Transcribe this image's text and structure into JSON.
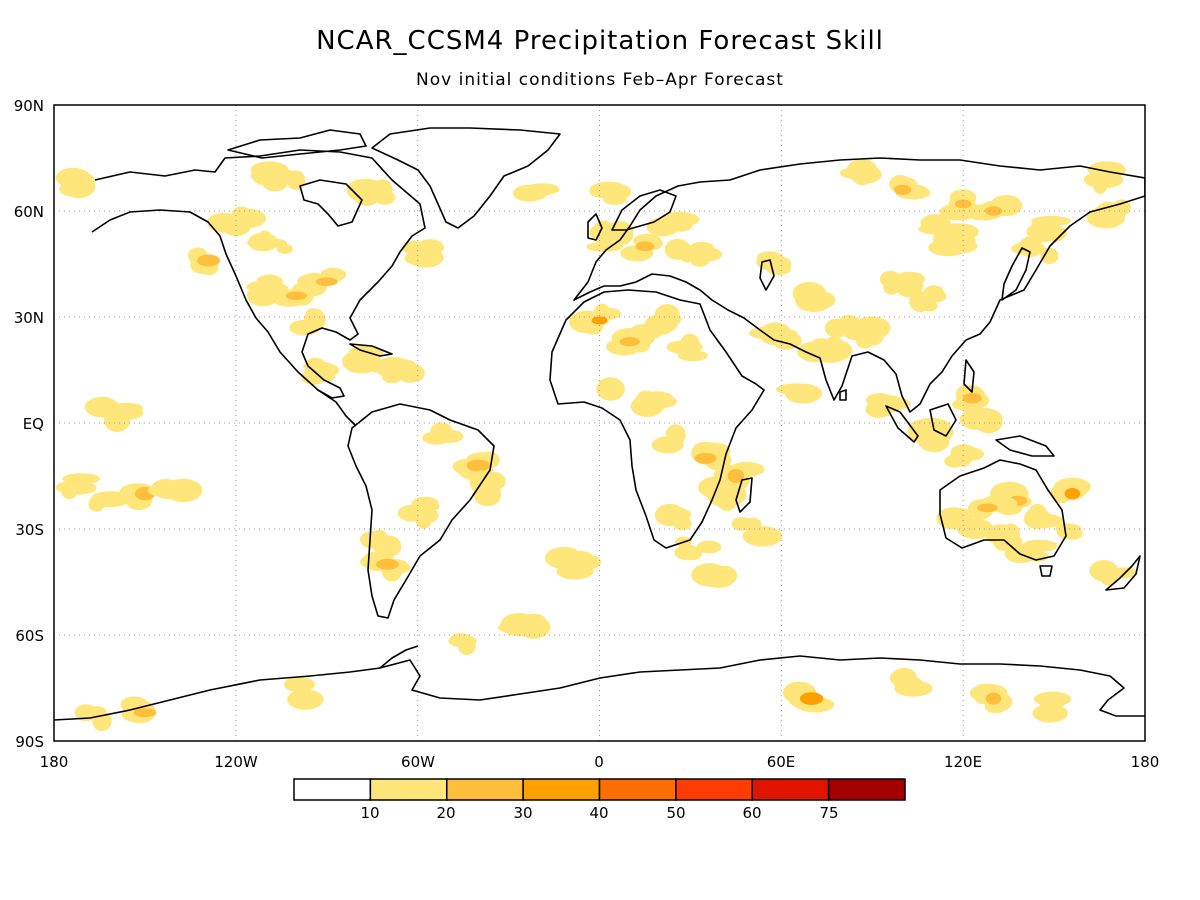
{
  "title": "NCAR_CCSM4 Precipitation Forecast Skill",
  "subtitle": "Nov initial conditions  Feb–Apr Forecast",
  "axes": {
    "lat_labels": [
      "90N",
      "60N",
      "30N",
      "EQ",
      "30S",
      "60S",
      "90S"
    ],
    "lon_labels": [
      "180",
      "120W",
      "60W",
      "0",
      "60E",
      "120E",
      "180"
    ],
    "grid": "dotted"
  },
  "colorbar": {
    "colors": [
      "#ffffff",
      "#ffe67a",
      "#ffbe3c",
      "#ffa000",
      "#ff6e00",
      "#ff3c00",
      "#e11400",
      "#a50000"
    ],
    "labels": [
      "10",
      "20",
      "30",
      "40",
      "50",
      "60",
      "75"
    ]
  },
  "chart_data": {
    "type": "heatmap",
    "title": "NCAR_CCSM4 Precipitation Forecast Skill",
    "subtitle": "Nov initial conditions  Feb–Apr Forecast",
    "xlim": [
      -180,
      180
    ],
    "ylim": [
      -90,
      90
    ],
    "x_ticks": [
      -180,
      -120,
      -60,
      0,
      60,
      120,
      180
    ],
    "y_ticks": [
      90,
      60,
      30,
      0,
      -30,
      -60,
      -90
    ],
    "levels": [
      10,
      20,
      30,
      40,
      50,
      60,
      75
    ],
    "regions": [
      {
        "lon": 156,
        "lat": -20,
        "value": 35
      },
      {
        "lon": 138,
        "lat": -22,
        "value": 22
      },
      {
        "lon": 128,
        "lat": -24,
        "value": 25
      },
      {
        "lon": 145,
        "lat": -27,
        "value": 18
      },
      {
        "lon": 120,
        "lat": -28,
        "value": 15
      },
      {
        "lon": 135,
        "lat": -32,
        "value": 15
      },
      {
        "lon": 142,
        "lat": -36,
        "value": 15
      },
      {
        "lon": 170,
        "lat": -44,
        "value": 15
      },
      {
        "lon": 158,
        "lat": -30,
        "value": 15
      },
      {
        "lon": 123,
        "lat": 7,
        "value": 22
      },
      {
        "lon": 125,
        "lat": 1,
        "value": 15
      },
      {
        "lon": 110,
        "lat": -3,
        "value": 15
      },
      {
        "lon": 120,
        "lat": -10,
        "value": 15
      },
      {
        "lon": 96,
        "lat": 5,
        "value": 15
      },
      {
        "lon": 70,
        "lat": -78,
        "value": 30
      },
      {
        "lon": 130,
        "lat": -78,
        "value": 25
      },
      {
        "lon": 100,
        "lat": -74,
        "value": 15
      },
      {
        "lon": 150,
        "lat": -80,
        "value": 15
      },
      {
        "lon": -150,
        "lat": -82,
        "value": 20
      },
      {
        "lon": -100,
        "lat": -76,
        "value": 15
      },
      {
        "lon": -168,
        "lat": -84,
        "value": 15
      },
      {
        "lon": -129,
        "lat": 46,
        "value": 22
      },
      {
        "lon": -100,
        "lat": 36,
        "value": 25
      },
      {
        "lon": -90,
        "lat": 40,
        "value": 25
      },
      {
        "lon": -110,
        "lat": 38,
        "value": 15
      },
      {
        "lon": -95,
        "lat": 28,
        "value": 15
      },
      {
        "lon": -107,
        "lat": 50,
        "value": 15
      },
      {
        "lon": -120,
        "lat": 57,
        "value": 15
      },
      {
        "lon": -75,
        "lat": 65,
        "value": 15
      },
      {
        "lon": -60,
        "lat": 48,
        "value": 15
      },
      {
        "lon": -100,
        "lat": 68,
        "value": 15
      },
      {
        "lon": -110,
        "lat": 70,
        "value": 15
      },
      {
        "lon": -175,
        "lat": 68,
        "value": 15
      },
      {
        "lon": -75,
        "lat": 18,
        "value": 15
      },
      {
        "lon": -65,
        "lat": 14,
        "value": 15
      },
      {
        "lon": -92,
        "lat": 15,
        "value": 15
      },
      {
        "lon": -40,
        "lat": -12,
        "value": 20
      },
      {
        "lon": -70,
        "lat": -40,
        "value": 25
      },
      {
        "lon": -72,
        "lat": -33,
        "value": 15
      },
      {
        "lon": -60,
        "lat": -25,
        "value": 15
      },
      {
        "lon": -50,
        "lat": -3,
        "value": 15
      },
      {
        "lon": -35,
        "lat": -18,
        "value": 15
      },
      {
        "lon": -25,
        "lat": -57,
        "value": 15
      },
      {
        "lon": -45,
        "lat": -61,
        "value": 15
      },
      {
        "lon": -8,
        "lat": -40,
        "value": 15
      },
      {
        "lon": -150,
        "lat": -20,
        "value": 20
      },
      {
        "lon": -175,
        "lat": -17,
        "value": 15
      },
      {
        "lon": -163,
        "lat": -23,
        "value": 15
      },
      {
        "lon": -160,
        "lat": 3,
        "value": 15
      },
      {
        "lon": -140,
        "lat": -18,
        "value": 15
      },
      {
        "lon": 0,
        "lat": 29,
        "value": 35
      },
      {
        "lon": 10,
        "lat": 23,
        "value": 25
      },
      {
        "lon": 20,
        "lat": 29,
        "value": 15
      },
      {
        "lon": 30,
        "lat": 20,
        "value": 15
      },
      {
        "lon": 5,
        "lat": 8,
        "value": 15
      },
      {
        "lon": 15,
        "lat": 6,
        "value": 15
      },
      {
        "lon": 25,
        "lat": -5,
        "value": 15
      },
      {
        "lon": 35,
        "lat": -10,
        "value": 25
      },
      {
        "lon": 45,
        "lat": -15,
        "value": 25
      },
      {
        "lon": 40,
        "lat": -20,
        "value": 15
      },
      {
        "lon": 25,
        "lat": -28,
        "value": 15
      },
      {
        "lon": 32,
        "lat": -35,
        "value": 15
      },
      {
        "lon": 40,
        "lat": -45,
        "value": 15
      },
      {
        "lon": 50,
        "lat": -30,
        "value": 15
      },
      {
        "lon": 5,
        "lat": 52,
        "value": 15
      },
      {
        "lon": 15,
        "lat": 50,
        "value": 20
      },
      {
        "lon": 25,
        "lat": 57,
        "value": 15
      },
      {
        "lon": 30,
        "lat": 47,
        "value": 15
      },
      {
        "lon": 5,
        "lat": 65,
        "value": 15
      },
      {
        "lon": -20,
        "lat": 65,
        "value": 15
      },
      {
        "lon": 55,
        "lat": 45,
        "value": 15
      },
      {
        "lon": 100,
        "lat": 66,
        "value": 25
      },
      {
        "lon": 120,
        "lat": 62,
        "value": 20
      },
      {
        "lon": 130,
        "lat": 60,
        "value": 25
      },
      {
        "lon": 115,
        "lat": 55,
        "value": 15
      },
      {
        "lon": 150,
        "lat": 55,
        "value": 15
      },
      {
        "lon": 110,
        "lat": 35,
        "value": 15
      },
      {
        "lon": 115,
        "lat": 50,
        "value": 15
      },
      {
        "lon": 70,
        "lat": 35,
        "value": 15
      },
      {
        "lon": 75,
        "lat": 20,
        "value": 15
      },
      {
        "lon": 80,
        "lat": 28,
        "value": 15
      },
      {
        "lon": 90,
        "lat": 25,
        "value": 15
      },
      {
        "lon": 100,
        "lat": 40,
        "value": 15
      },
      {
        "lon": 60,
        "lat": 25,
        "value": 15
      },
      {
        "lon": 65,
        "lat": 10,
        "value": 15
      },
      {
        "lon": 170,
        "lat": 60,
        "value": 15
      },
      {
        "lon": 165,
        "lat": 70,
        "value": 15
      },
      {
        "lon": 85,
        "lat": 70,
        "value": 15
      },
      {
        "lon": 145,
        "lat": 48,
        "value": 15
      }
    ]
  }
}
